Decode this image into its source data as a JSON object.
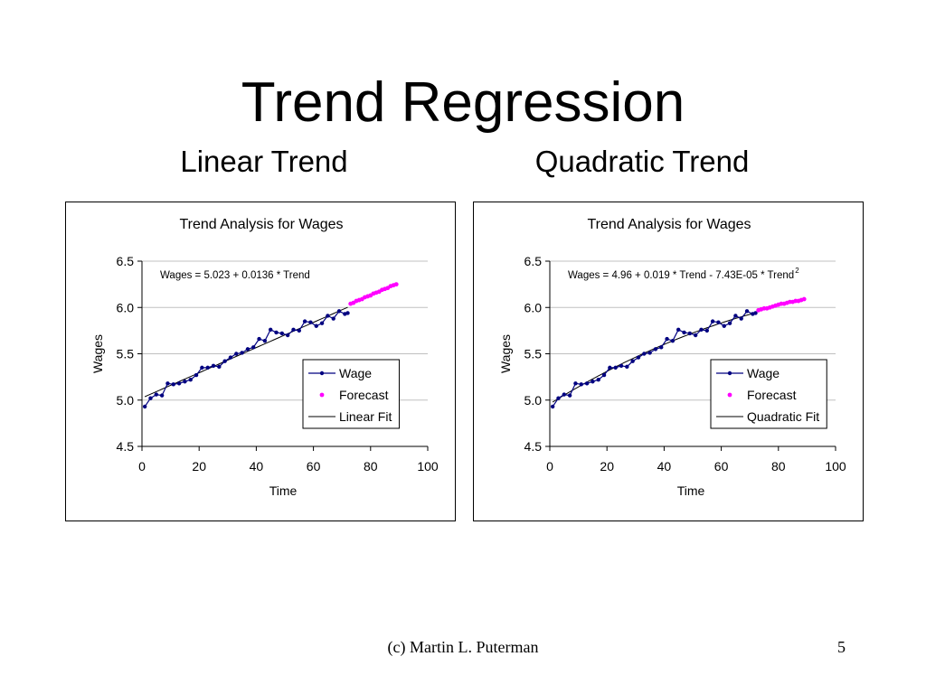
{
  "slide": {
    "title": "Trend Regression",
    "subtitle_left": "Linear Trend",
    "subtitle_right": "Quadratic Trend",
    "footer": "(c) Martin L. Puterman",
    "page_number": "5"
  },
  "colors": {
    "wage": "#000080",
    "forecast": "#ff00ff",
    "fit": "#000000",
    "grid": "#c0c0c0"
  },
  "chart_data": [
    {
      "type": "line",
      "title": "Trend Analysis for Wages",
      "xlabel": "Time",
      "ylabel": "Wages",
      "xlim": [
        0,
        100
      ],
      "ylim": [
        4.5,
        6.5
      ],
      "xticks": [
        0,
        20,
        40,
        60,
        80,
        100
      ],
      "yticks": [
        "4.5",
        "5.0",
        "5.5",
        "6.0",
        "6.5"
      ],
      "grid": "horizontal",
      "legend_position": "bottom-right",
      "annotation": "Wages = 5.023 + 0.0136 * Trend",
      "annotation_sup": "",
      "fit": {
        "name": "Linear Fit",
        "intercept": 5.023,
        "b1": 0.0136,
        "b2": 0
      },
      "series": [
        {
          "name": "Wage",
          "x": [
            1,
            3,
            5,
            7,
            9,
            11,
            13,
            15,
            17,
            19,
            21,
            23,
            25,
            27,
            29,
            31,
            33,
            35,
            37,
            39,
            41,
            43,
            45,
            47,
            49,
            51,
            53,
            55,
            57,
            59,
            61,
            63,
            65,
            67,
            69,
            71,
            72
          ],
          "values": [
            4.93,
            5.02,
            5.06,
            5.05,
            5.18,
            5.17,
            5.18,
            5.2,
            5.22,
            5.27,
            5.35,
            5.35,
            5.37,
            5.36,
            5.42,
            5.46,
            5.5,
            5.51,
            5.55,
            5.57,
            5.66,
            5.64,
            5.76,
            5.73,
            5.72,
            5.7,
            5.76,
            5.75,
            5.85,
            5.84,
            5.8,
            5.83,
            5.91,
            5.88,
            5.96,
            5.93,
            5.94
          ]
        },
        {
          "name": "Forecast",
          "x": [
            73,
            74,
            75,
            76,
            77,
            78,
            79,
            80,
            81,
            82,
            83,
            84,
            85,
            86,
            87,
            88,
            89
          ],
          "values": [
            6.04,
            6.05,
            6.07,
            6.08,
            6.09,
            6.11,
            6.12,
            6.13,
            6.15,
            6.16,
            6.17,
            6.19,
            6.2,
            6.21,
            6.23,
            6.24,
            6.25
          ]
        }
      ]
    },
    {
      "type": "line",
      "title": "Trend Analysis for Wages",
      "xlabel": "Time",
      "ylabel": "Wages",
      "xlim": [
        0,
        100
      ],
      "ylim": [
        4.5,
        6.5
      ],
      "xticks": [
        0,
        20,
        40,
        60,
        80,
        100
      ],
      "yticks": [
        "4.5",
        "5.0",
        "5.5",
        "6.0",
        "6.5"
      ],
      "grid": "horizontal",
      "legend_position": "bottom-right",
      "annotation": "Wages = 4.96 + 0.019 * Trend - 7.43E-05 * Trend",
      "annotation_sup": "2",
      "fit": {
        "name": "Quadratic Fit",
        "intercept": 4.96,
        "b1": 0.019,
        "b2": -7.43e-05
      },
      "series": [
        {
          "name": "Wage",
          "x": [
            1,
            3,
            5,
            7,
            9,
            11,
            13,
            15,
            17,
            19,
            21,
            23,
            25,
            27,
            29,
            31,
            33,
            35,
            37,
            39,
            41,
            43,
            45,
            47,
            49,
            51,
            53,
            55,
            57,
            59,
            61,
            63,
            65,
            67,
            69,
            71,
            72
          ],
          "values": [
            4.93,
            5.02,
            5.06,
            5.05,
            5.18,
            5.17,
            5.18,
            5.2,
            5.22,
            5.27,
            5.35,
            5.35,
            5.37,
            5.36,
            5.42,
            5.46,
            5.5,
            5.51,
            5.55,
            5.57,
            5.66,
            5.64,
            5.76,
            5.73,
            5.72,
            5.7,
            5.76,
            5.75,
            5.85,
            5.84,
            5.8,
            5.83,
            5.91,
            5.88,
            5.96,
            5.93,
            5.94
          ]
        },
        {
          "name": "Forecast",
          "x": [
            73,
            74,
            75,
            76,
            77,
            78,
            79,
            80,
            81,
            82,
            83,
            84,
            85,
            86,
            87,
            88,
            89
          ],
          "values": [
            5.97,
            5.98,
            5.99,
            5.99,
            6.0,
            6.01,
            6.02,
            6.03,
            6.04,
            6.04,
            6.05,
            6.06,
            6.06,
            6.07,
            6.07,
            6.08,
            6.09
          ]
        }
      ]
    }
  ]
}
